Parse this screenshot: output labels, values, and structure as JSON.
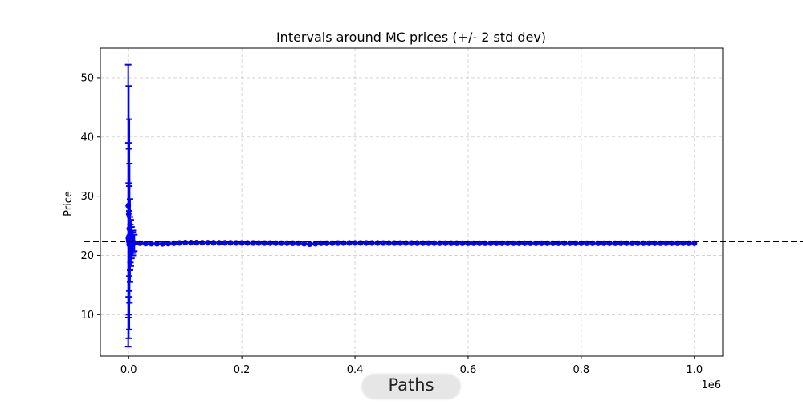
{
  "chart_data": {
    "type": "scatter",
    "title": "Intervals around MC prices (+/- 2 std dev)",
    "xlabel": "Paths",
    "ylabel": "Price",
    "x_offset_text": "1e6",
    "xlim": [
      -50000,
      1050000
    ],
    "ylim": [
      3,
      55
    ],
    "x_ticks": [
      0,
      200000,
      400000,
      600000,
      800000,
      1000000
    ],
    "x_tick_labels": [
      "0.0",
      "0.2",
      "0.4",
      "0.6",
      "0.8",
      "1.0"
    ],
    "y_ticks": [
      10,
      20,
      30,
      40,
      50
    ],
    "y_tick_labels": [
      "10",
      "20",
      "30",
      "40",
      "50"
    ],
    "grid": true,
    "reference_line": {
      "y": 22.35,
      "style": "dashed",
      "color": "#000000"
    },
    "series": [
      {
        "color": "#0000ff",
        "early_intervals": [
          {
            "x": 100,
            "mean": 28.4,
            "low": 4.6,
            "high": 52.2
          },
          {
            "x": 200,
            "mean": 27.0,
            "low": 6.0,
            "high": 48.6
          },
          {
            "x": 300,
            "mean": 24.5,
            "low": 7.5,
            "high": 43.0
          },
          {
            "x": 400,
            "mean": 22.9,
            "low": 9.5,
            "high": 39.0
          },
          {
            "x": 500,
            "mean": 23.2,
            "low": 10.0,
            "high": 38.0
          },
          {
            "x": 700,
            "mean": 22.0,
            "low": 12.0,
            "high": 35.5
          },
          {
            "x": 900,
            "mean": 22.4,
            "low": 13.0,
            "high": 32.2
          },
          {
            "x": 1200,
            "mean": 21.9,
            "low": 14.0,
            "high": 31.7
          },
          {
            "x": 1600,
            "mean": 22.5,
            "low": 15.5,
            "high": 29.5
          },
          {
            "x": 2000,
            "mean": 21.8,
            "low": 16.5,
            "high": 27.5
          },
          {
            "x": 2500,
            "mean": 22.6,
            "low": 17.5,
            "high": 26.5
          },
          {
            "x": 3000,
            "mean": 22.1,
            "low": 18.2,
            "high": 26.0
          },
          {
            "x": 4000,
            "mean": 21.9,
            "low": 18.8,
            "high": 25.2
          },
          {
            "x": 5000,
            "mean": 22.3,
            "low": 19.5,
            "high": 24.8
          },
          {
            "x": 6500,
            "mean": 22.0,
            "low": 20.0,
            "high": 24.2
          },
          {
            "x": 8000,
            "mean": 22.2,
            "low": 20.4,
            "high": 23.9
          },
          {
            "x": 10000,
            "mean": 22.1,
            "low": 20.7,
            "high": 23.5
          }
        ],
        "trend": [
          {
            "x": 10000,
            "y": 22.1
          },
          {
            "x": 30000,
            "y": 22.0
          },
          {
            "x": 60000,
            "y": 21.95
          },
          {
            "x": 100000,
            "y": 22.15
          },
          {
            "x": 200000,
            "y": 22.1
          },
          {
            "x": 300000,
            "y": 22.05
          },
          {
            "x": 320000,
            "y": 21.9
          },
          {
            "x": 340000,
            "y": 22.05
          },
          {
            "x": 400000,
            "y": 22.1
          },
          {
            "x": 600000,
            "y": 22.05
          },
          {
            "x": 800000,
            "y": 22.05
          },
          {
            "x": 1000000,
            "y": 22.05
          }
        ],
        "late_band": 0.28
      }
    ]
  }
}
